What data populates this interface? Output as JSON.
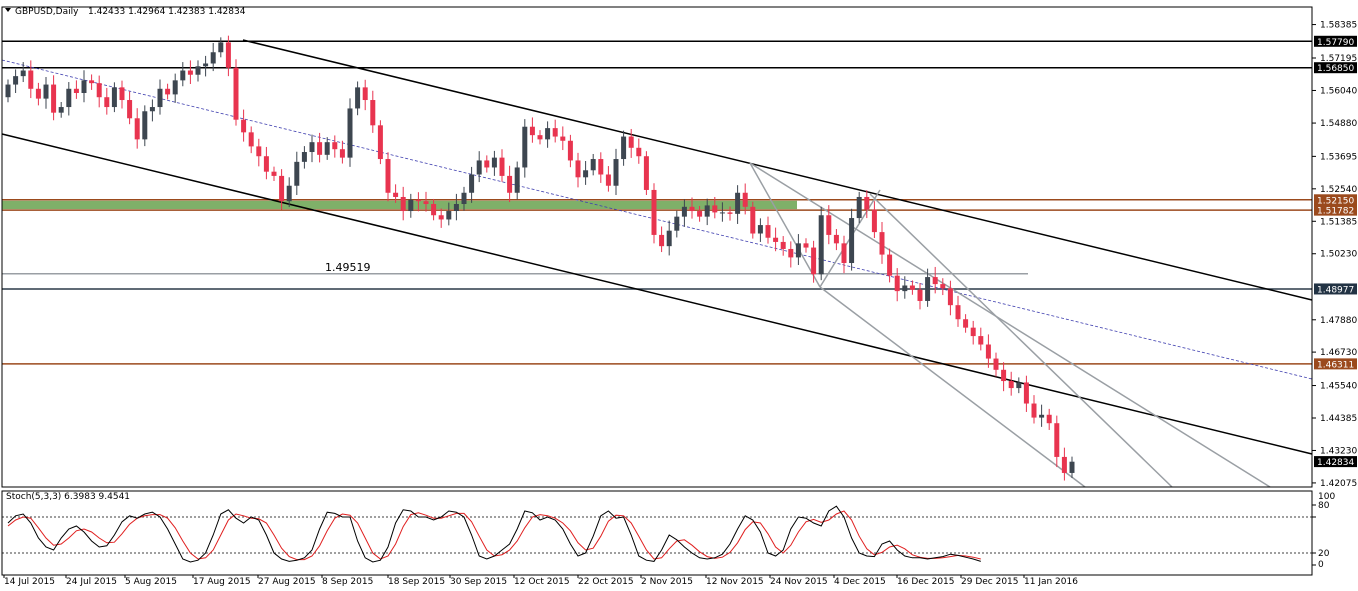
{
  "header": {
    "symbol": "GBPUSD,Daily",
    "ohlc": "1.42433 1.42964 1.42383 1.42834"
  },
  "stoch": {
    "label": "Stoch(5,3,3) 6.3983 9.4541",
    "ticks": [
      "100",
      "80",
      "20",
      "0"
    ]
  },
  "colors": {
    "bull": "#3d4650",
    "bear": "#e8344f",
    "zone": "#7fb069",
    "brown_line": "#9b4a1d",
    "grey_line": "#9a9fa4",
    "dotted_line": "#4040b0",
    "stoch_main": "#000000",
    "stoch_signal": "#e02020"
  },
  "chart_data": {
    "type": "candlestick",
    "price_ticks": [
      "1.58385",
      "1.57195",
      "1.56040",
      "1.54880",
      "1.53695",
      "1.52540",
      "1.51385",
      "1.50230",
      "1.47880",
      "1.46730",
      "1.45540",
      "1.44385",
      "1.43230",
      "1.42075"
    ],
    "price_tags": [
      {
        "value": 1.5779,
        "text": "1.57790",
        "color": "#000000"
      },
      {
        "value": 1.5685,
        "text": "1.56850",
        "color": "#000000"
      },
      {
        "value": 1.5215,
        "text": "1.52150",
        "color": "#9b4a1d"
      },
      {
        "value": 1.51782,
        "text": "1.51782",
        "color": "#9b4a1d"
      },
      {
        "value": 1.48977,
        "text": "1.48977",
        "color": "#223344"
      },
      {
        "value": 1.46311,
        "text": "1.46311",
        "color": "#9b4a1d"
      },
      {
        "value": 1.42834,
        "text": "1.42834",
        "color": "#000000"
      }
    ],
    "level_label": "1.49519",
    "x_labels": [
      "14 Jul 2015",
      "24 Jul 2015",
      "5 Aug 2015",
      "17 Aug 2015",
      "27 Aug 2015",
      "8 Sep 2015",
      "18 Sep 2015",
      "30 Sep 2015",
      "12 Oct 2015",
      "22 Oct 2015",
      "2 Nov 2015",
      "12 Nov 2015",
      "24 Nov 2015",
      "4 Dec 2015",
      "16 Dec 2015",
      "29 Dec 2015",
      "11 Jan 2016"
    ],
    "closes": [
      1.5625,
      1.5655,
      1.5675,
      1.561,
      1.5575,
      1.5625,
      1.5525,
      1.5545,
      1.561,
      1.5595,
      1.564,
      1.563,
      1.558,
      1.5545,
      1.5615,
      1.557,
      1.5505,
      1.543,
      1.553,
      1.5545,
      1.561,
      1.559,
      1.564,
      1.5675,
      1.566,
      1.569,
      1.57,
      1.574,
      1.5775,
      1.5685,
      1.55,
      1.5455,
      1.5405,
      1.537,
      1.5315,
      1.53,
      1.521,
      1.5265,
      1.535,
      1.5385,
      1.542,
      1.5375,
      1.542,
      1.5395,
      1.5365,
      1.554,
      1.5615,
      1.557,
      1.548,
      1.536,
      1.524,
      1.5225,
      1.5175,
      1.5215,
      1.521,
      1.52,
      1.516,
      1.5145,
      1.5175,
      1.52,
      1.524,
      1.5305,
      1.5355,
      1.533,
      1.5365,
      1.53,
      1.524,
      1.533,
      1.5475,
      1.5445,
      1.543,
      1.547,
      1.544,
      1.5425,
      1.5355,
      1.5295,
      1.532,
      1.536,
      1.5305,
      1.5265,
      1.536,
      1.544,
      1.54,
      1.537,
      1.525,
      1.509,
      1.505,
      1.5105,
      1.5155,
      1.519,
      1.5175,
      1.5155,
      1.5195,
      1.517,
      1.517,
      1.5165,
      1.524,
      1.519,
      1.5095,
      1.5125,
      1.508,
      1.5065,
      1.504,
      1.501,
      1.506,
      1.5045,
      1.495,
      1.516,
      1.509,
      1.506,
      1.499,
      1.515,
      1.5225,
      1.518,
      1.51,
      1.502,
      1.4945,
      1.489,
      1.491,
      1.4895,
      1.4855,
      1.494,
      1.4915,
      1.49,
      1.484,
      1.479,
      1.476,
      1.473,
      1.47,
      1.465,
      1.461,
      1.457,
      1.4545,
      1.4565,
      1.449,
      1.444,
      1.445,
      1.442,
      1.43,
      1.4243,
      1.4283
    ],
    "stoch_main": [
      70,
      82,
      85,
      70,
      45,
      30,
      25,
      45,
      60,
      65,
      55,
      40,
      30,
      32,
      50,
      72,
      82,
      78,
      85,
      88,
      80,
      60,
      35,
      10,
      5,
      8,
      20,
      50,
      85,
      92,
      78,
      70,
      80,
      75,
      50,
      20,
      10,
      6,
      8,
      12,
      25,
      60,
      88,
      86,
      80,
      80,
      40,
      12,
      5,
      8,
      30,
      70,
      92,
      90,
      80,
      80,
      75,
      80,
      90,
      88,
      80,
      50,
      15,
      10,
      15,
      25,
      35,
      60,
      90,
      87,
      75,
      80,
      75,
      60,
      35,
      15,
      20,
      48,
      82,
      90,
      78,
      80,
      50,
      15,
      8,
      6,
      25,
      50,
      42,
      30,
      20,
      12,
      10,
      12,
      18,
      35,
      60,
      82,
      75,
      55,
      20,
      15,
      25,
      60,
      80,
      78,
      70,
      65,
      90,
      98,
      80,
      45,
      20,
      15,
      14,
      35,
      40,
      25,
      15,
      12,
      12,
      10,
      12,
      14,
      18,
      16,
      13,
      10,
      6
    ],
    "stoch_signal": [
      65,
      75,
      80,
      78,
      62,
      45,
      33,
      35,
      45,
      57,
      60,
      55,
      45,
      37,
      38,
      52,
      68,
      78,
      82,
      84,
      84,
      78,
      62,
      40,
      20,
      10,
      12,
      25,
      50,
      75,
      85,
      82,
      78,
      77,
      70,
      50,
      28,
      14,
      9,
      9,
      15,
      32,
      57,
      78,
      85,
      83,
      70,
      45,
      20,
      10,
      15,
      35,
      64,
      84,
      87,
      83,
      78,
      78,
      82,
      86,
      86,
      72,
      48,
      25,
      15,
      17,
      25,
      40,
      62,
      80,
      84,
      82,
      78,
      70,
      57,
      37,
      25,
      28,
      48,
      73,
      83,
      82,
      70,
      48,
      25,
      10,
      12,
      27,
      40,
      42,
      33,
      22,
      14,
      11,
      13,
      21,
      37,
      59,
      72,
      70,
      52,
      30,
      20,
      33,
      55,
      72,
      76,
      71,
      75,
      85,
      90,
      75,
      48,
      27,
      17,
      21,
      30,
      33,
      27,
      17,
      13,
      11,
      11,
      12,
      14,
      16,
      15,
      13,
      10
    ]
  }
}
